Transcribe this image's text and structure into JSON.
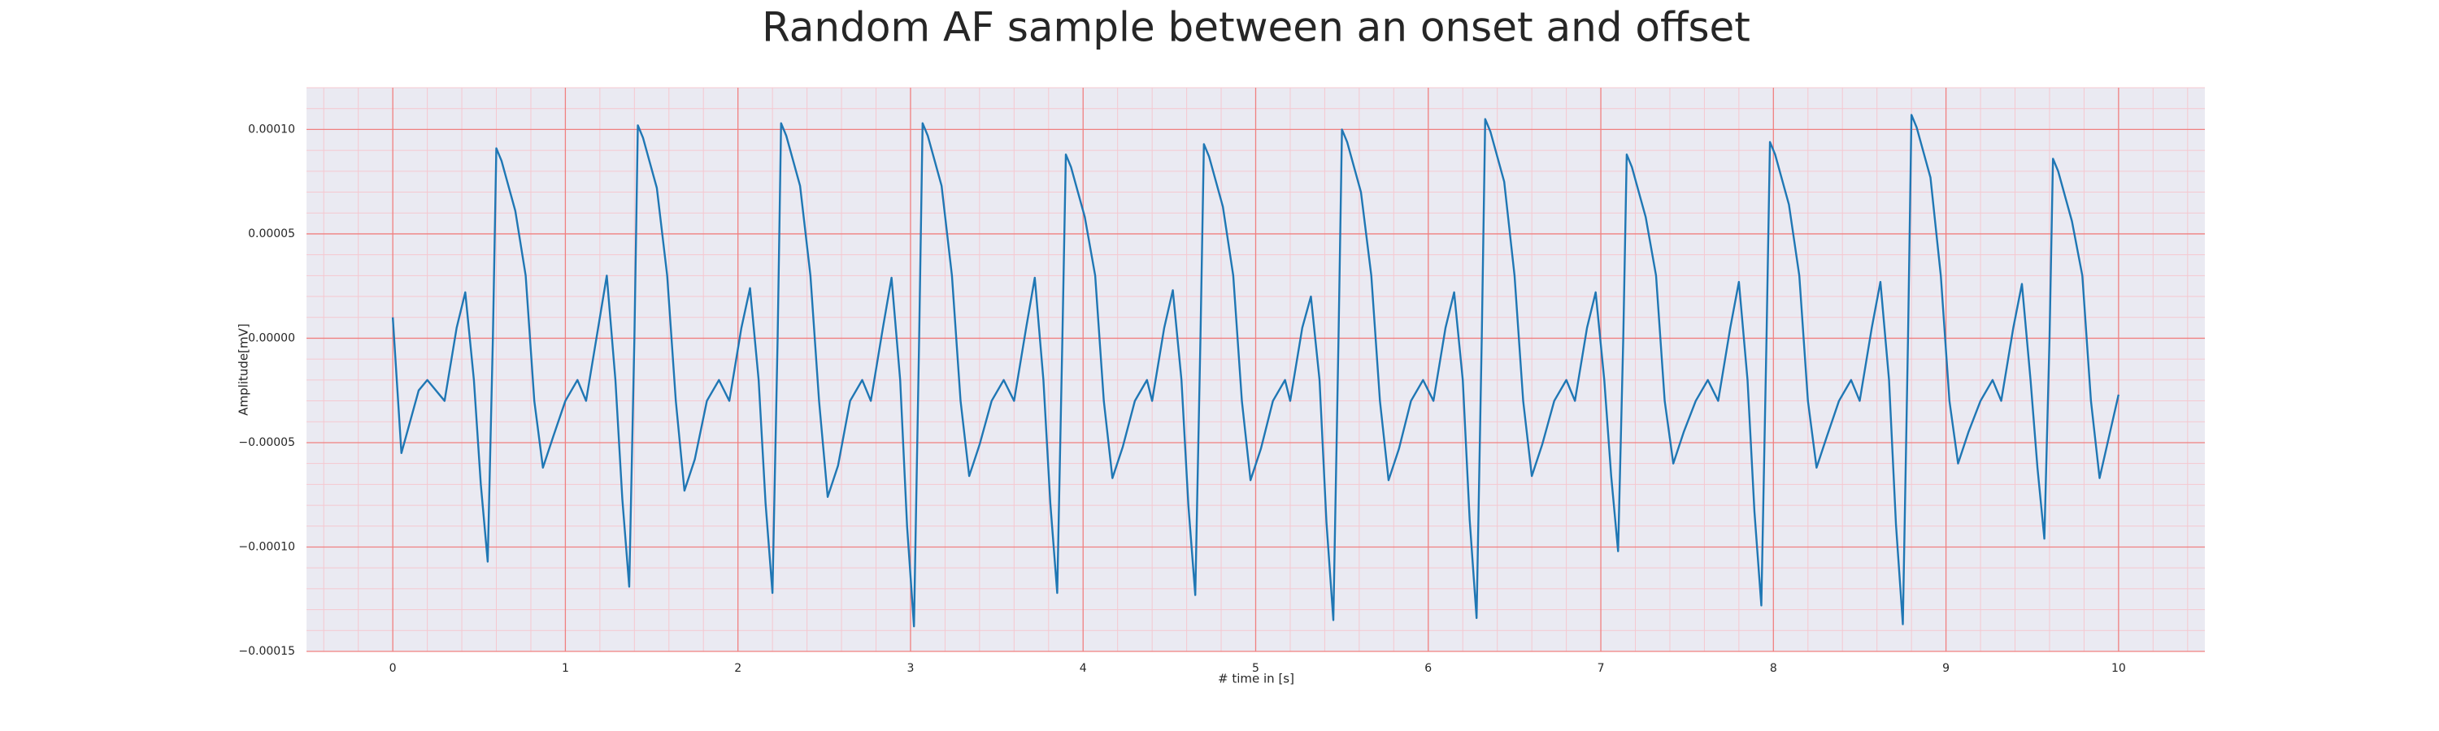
{
  "chart_data": {
    "type": "line",
    "title": "Random AF sample between an onset and offset",
    "xlabel": "# time in [s]",
    "ylabel": "Amplitude[mV]",
    "color": "#1f77b4",
    "background": "#eaeaf2",
    "grid": true,
    "grid_color": "#f08080",
    "minor_grid": true,
    "minor_grid_color": "#f5c8d0",
    "xlim": [
      -0.5,
      10.5
    ],
    "ylim": [
      -0.00015,
      0.00012
    ],
    "xticks": [
      0,
      1,
      2,
      3,
      4,
      5,
      6,
      7,
      8,
      9,
      10
    ],
    "yticks": [
      {
        "value": 0.0001,
        "label": "0.00010"
      },
      {
        "value": 5e-05,
        "label": "0.00005"
      },
      {
        "value": 0,
        "label": "0.00000"
      },
      {
        "value": -5e-05,
        "label": "−0.00005"
      },
      {
        "value": -0.0001,
        "label": "−0.00010"
      },
      {
        "value": -0.00015,
        "label": "−0.00015"
      }
    ],
    "x": [
      0,
      0.05,
      0.1,
      0.15,
      0.2,
      0.3,
      0.37,
      0.42,
      0.47,
      0.51,
      0.55,
      0.58,
      0.6,
      0.63,
      0.67,
      0.71,
      0.77,
      0.82,
      0.87,
      0.93,
      1.0,
      1.07,
      1.12,
      1.19,
      1.24,
      1.29,
      1.33,
      1.37,
      1.4,
      1.42,
      1.45,
      1.49,
      1.53,
      1.59,
      1.64,
      1.69,
      1.75,
      1.82,
      1.89,
      1.95,
      2.02,
      2.07,
      2.12,
      2.16,
      2.2,
      2.23,
      2.25,
      2.28,
      2.32,
      2.36,
      2.42,
      2.47,
      2.52,
      2.58,
      2.65,
      2.72,
      2.77,
      2.84,
      2.89,
      2.94,
      2.98,
      3.02,
      3.05,
      3.07,
      3.1,
      3.14,
      3.18,
      3.24,
      3.29,
      3.34,
      3.4,
      3.47,
      3.54,
      3.6,
      3.67,
      3.72,
      3.77,
      3.81,
      3.85,
      3.88,
      3.9,
      3.93,
      3.97,
      4.01,
      4.07,
      4.12,
      4.17,
      4.23,
      4.3,
      4.37,
      4.4,
      4.47,
      4.52,
      4.57,
      4.61,
      4.65,
      4.68,
      4.7,
      4.73,
      4.77,
      4.81,
      4.87,
      4.92,
      4.97,
      5.03,
      5.1,
      5.17,
      5.2,
      5.27,
      5.32,
      5.37,
      5.41,
      5.45,
      5.48,
      5.5,
      5.53,
      5.57,
      5.61,
      5.67,
      5.72,
      5.77,
      5.83,
      5.9,
      5.97,
      6.03,
      6.1,
      6.15,
      6.2,
      6.24,
      6.28,
      6.31,
      6.33,
      6.36,
      6.4,
      6.44,
      6.5,
      6.55,
      6.6,
      6.66,
      6.73,
      6.8,
      6.85,
      6.92,
      6.97,
      7.02,
      7.06,
      7.1,
      7.13,
      7.15,
      7.18,
      7.22,
      7.26,
      7.32,
      7.37,
      7.42,
      7.48,
      7.55,
      7.62,
      7.68,
      7.75,
      7.8,
      7.85,
      7.89,
      7.93,
      7.96,
      7.98,
      8.01,
      8.05,
      8.09,
      8.15,
      8.2,
      8.25,
      8.31,
      8.38,
      8.45,
      8.5,
      8.57,
      8.62,
      8.67,
      8.71,
      8.75,
      8.78,
      8.8,
      8.83,
      8.87,
      8.91,
      8.97,
      9.02,
      9.07,
      9.13,
      9.2,
      9.27,
      9.32,
      9.39,
      9.44,
      9.49,
      9.53,
      9.57,
      9.6,
      9.62,
      9.65,
      9.69,
      9.73,
      9.79,
      9.84,
      9.89,
      10.0
    ],
    "values": [
      1e-05,
      -5.5e-05,
      -4e-05,
      -2.5e-05,
      -2e-05,
      -3e-05,
      5e-06,
      2.2e-05,
      -2e-05,
      -7e-05,
      -0.000107,
      0,
      9.1e-05,
      8.5e-05,
      7.3e-05,
      6.1e-05,
      3e-05,
      -3e-05,
      -6.2e-05,
      -4.7e-05,
      -3e-05,
      -2e-05,
      -3e-05,
      5e-06,
      3e-05,
      -2e-05,
      -7.7e-05,
      -0.000119,
      0,
      0.000102,
      9.6e-05,
      8.4e-05,
      7.2e-05,
      3e-05,
      -3e-05,
      -7.3e-05,
      -5.8e-05,
      -3e-05,
      -2e-05,
      -3e-05,
      5e-06,
      2.4e-05,
      -2e-05,
      -7.9e-05,
      -0.000122,
      0,
      0.000103,
      9.7e-05,
      8.5e-05,
      7.3e-05,
      3e-05,
      -3e-05,
      -7.6e-05,
      -6.1e-05,
      -3e-05,
      -2e-05,
      -3e-05,
      5e-06,
      2.9e-05,
      -2e-05,
      -9e-05,
      -0.000138,
      0,
      0.000103,
      9.7e-05,
      8.5e-05,
      7.3e-05,
      3e-05,
      -3e-05,
      -6.6e-05,
      -5.1e-05,
      -3e-05,
      -2e-05,
      -3e-05,
      5e-06,
      2.9e-05,
      -2e-05,
      -7.9e-05,
      -0.000122,
      0,
      8.8e-05,
      8.2e-05,
      7e-05,
      5.8e-05,
      3e-05,
      -3e-05,
      -6.7e-05,
      -5.2e-05,
      -3e-05,
      -2e-05,
      -3e-05,
      5e-06,
      2.3e-05,
      -2e-05,
      -8e-05,
      -0.000123,
      0,
      9.3e-05,
      8.7e-05,
      7.5e-05,
      6.3e-05,
      3e-05,
      -3e-05,
      -6.8e-05,
      -5.3e-05,
      -3e-05,
      -2e-05,
      -3e-05,
      5e-06,
      2e-05,
      -2e-05,
      -8.8e-05,
      -0.000135,
      0,
      0.0001,
      9.4e-05,
      8.2e-05,
      7e-05,
      3e-05,
      -3e-05,
      -6.8e-05,
      -5.3e-05,
      -3e-05,
      -2e-05,
      -3e-05,
      5e-06,
      2.2e-05,
      -2e-05,
      -8.7e-05,
      -0.000134,
      0,
      0.000105,
      9.9e-05,
      8.7e-05,
      7.5e-05,
      3e-05,
      -3e-05,
      -6.6e-05,
      -5.1e-05,
      -3e-05,
      -2e-05,
      -3e-05,
      5e-06,
      2.2e-05,
      -2e-05,
      -6.6e-05,
      -0.000102,
      0,
      8.8e-05,
      8.2e-05,
      7e-05,
      5.8e-05,
      3e-05,
      -3e-05,
      -6e-05,
      -4.5e-05,
      -3e-05,
      -2e-05,
      -3e-05,
      5e-06,
      2.7e-05,
      -2e-05,
      -8.3e-05,
      -0.000128,
      0,
      9.4e-05,
      8.8e-05,
      7.6e-05,
      6.4e-05,
      3e-05,
      -3e-05,
      -6.2e-05,
      -4.7e-05,
      -3e-05,
      -2e-05,
      -3e-05,
      5e-06,
      2.7e-05,
      -2e-05,
      -8.9e-05,
      -0.000137,
      0,
      0.000107,
      0.000101,
      8.9e-05,
      7.7e-05,
      3e-05,
      -3e-05,
      -6e-05,
      -4.5e-05,
      -3e-05,
      -2e-05,
      -3e-05,
      5e-06,
      2.6e-05,
      -2e-05,
      -6.2e-05,
      -9.6e-05,
      0,
      8.6e-05,
      8e-05,
      6.8e-05,
      5.6e-05,
      3e-05,
      -3e-05,
      -6.7e-05,
      -2.7e-05
    ]
  }
}
